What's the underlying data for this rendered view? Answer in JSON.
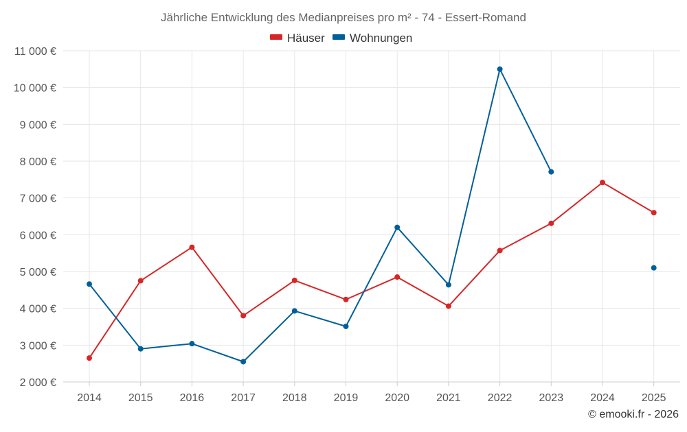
{
  "chart_data": {
    "type": "line",
    "title": "Jährliche Entwicklung des Medianpreises pro m² - 74 - Essert-Romand",
    "categories": [
      "2014",
      "2015",
      "2016",
      "2017",
      "2018",
      "2019",
      "2020",
      "2021",
      "2022",
      "2023",
      "2024",
      "2025"
    ],
    "ylim": [
      2000,
      11000
    ],
    "ytick_values": [
      2000,
      3000,
      4000,
      5000,
      6000,
      7000,
      8000,
      9000,
      10000,
      11000
    ],
    "ytick_labels": [
      "2 000 €",
      "3 000 €",
      "4 000 €",
      "5 000 €",
      "6 000 €",
      "7 000 €",
      "8 000 €",
      "9 000 €",
      "10 000 €",
      "11 000 €"
    ],
    "grid": true,
    "legend_position": "top-center",
    "series": [
      {
        "name": "Häuser",
        "color": "#d62728",
        "values": [
          2650,
          4750,
          5660,
          3800,
          4760,
          4240,
          4850,
          4060,
          5570,
          6310,
          7420,
          6600
        ]
      },
      {
        "name": "Wohnungen",
        "color": "#005f99",
        "values": [
          4660,
          2900,
          3040,
          2550,
          3930,
          3510,
          6200,
          4640,
          10500,
          7710,
          null,
          5100
        ]
      }
    ],
    "credit": "© emooki.fr - 2026"
  }
}
